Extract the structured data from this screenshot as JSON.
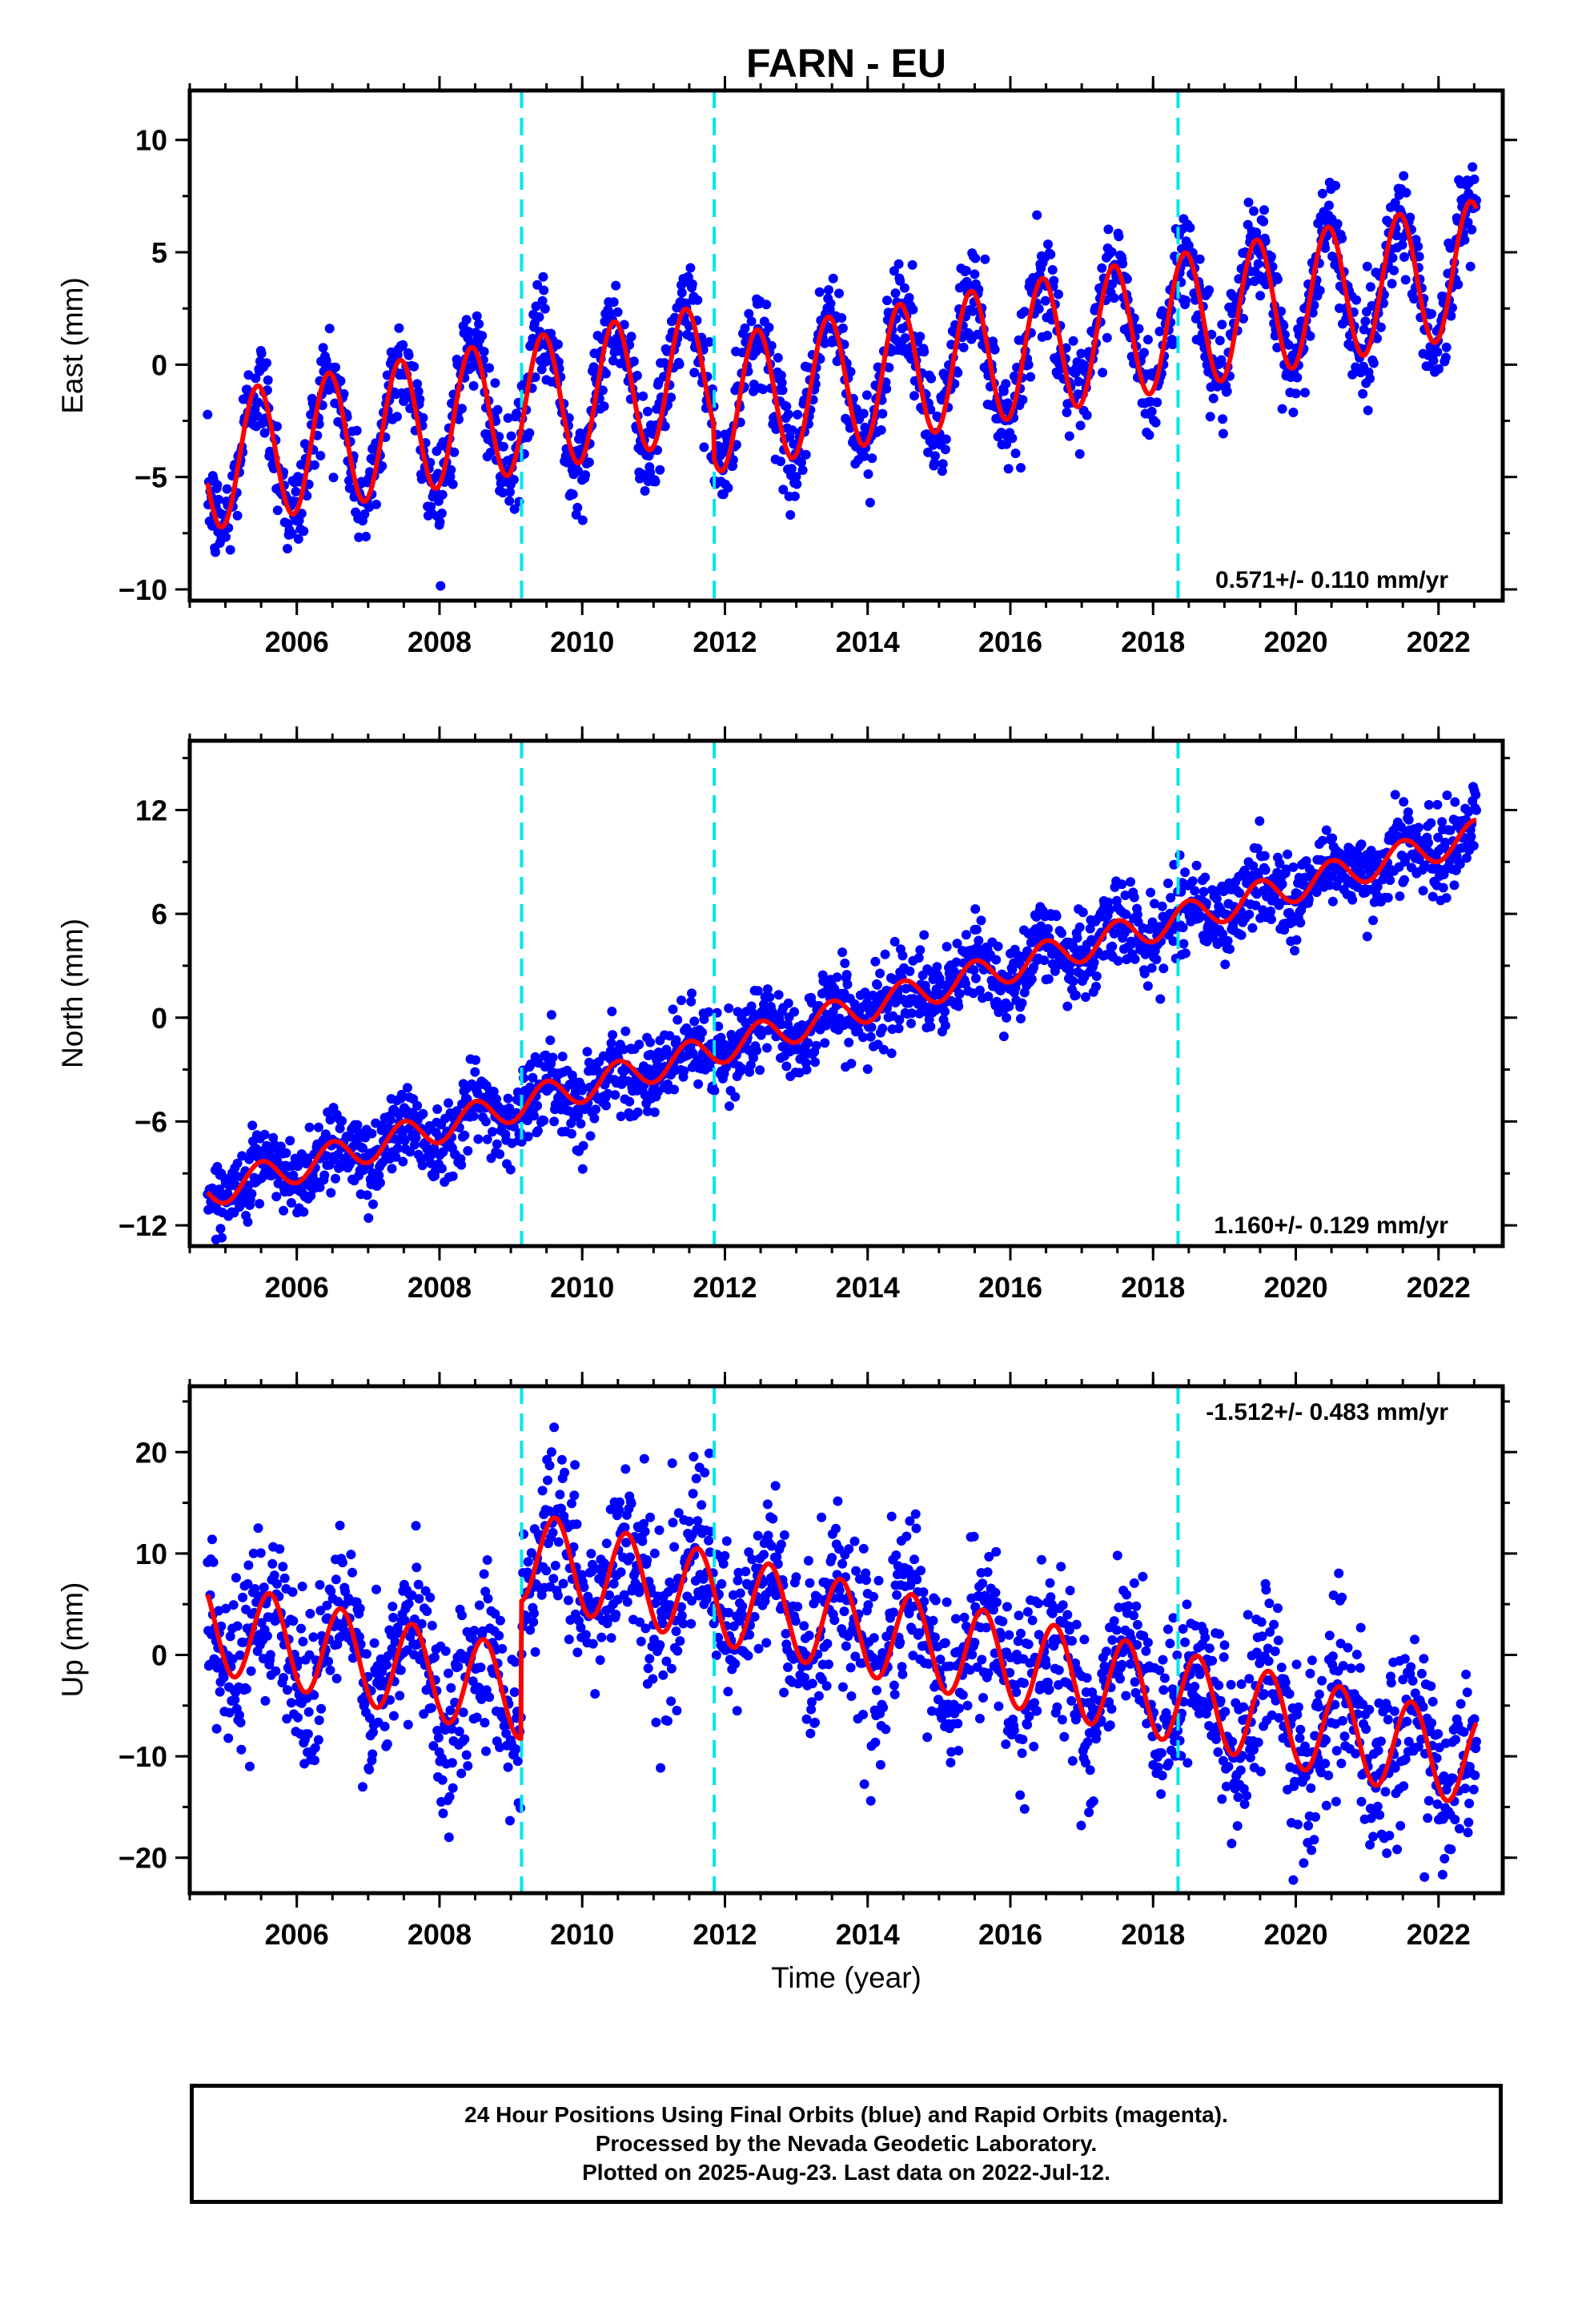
{
  "title": "FARN - EU",
  "xlabel": "Time (year)",
  "footer": {
    "line1": "24 Hour Positions Using Final Orbits (blue) and Rapid Orbits (magenta).",
    "line2": "Processed by the Nevada Geodetic Laboratory.",
    "line3": "Plotted on 2025-Aug-23. Last data on 2022-Jul-12."
  },
  "colors": {
    "observations": "#0000ff",
    "model": "#ff0000",
    "equipment_change": "#00e5ee",
    "frame": "#000000"
  },
  "chart_data": [
    {
      "type": "scatter",
      "component": "east",
      "ylabel": "East (mm)",
      "xlim": [
        2004.5,
        2022.9
      ],
      "ylim": [
        -10.5,
        12.2
      ],
      "xticks": [
        2006,
        2008,
        2010,
        2012,
        2014,
        2016,
        2018,
        2020,
        2022
      ],
      "yticks": [
        -10,
        -5,
        0,
        5,
        10
      ],
      "rate_text": "0.571+/- 0.110 mm/yr",
      "rate_position": "bottom-right",
      "data_span": [
        2004.75,
        2022.53
      ],
      "equipment_changes": [
        2009.15,
        2011.85,
        2018.35
      ],
      "model": {
        "offset_at_2005": -4.2,
        "trend_mm_per_yr": 0.571,
        "annual_amplitude": 3.0,
        "annual_peak": 0.45,
        "steps": [
          [
            2009.15,
            0.0
          ],
          [
            2011.85,
            -1.5
          ],
          [
            2018.35,
            0.0
          ]
        ]
      },
      "series": [
        {
          "name": "24 Hour Positions",
          "style": "dots",
          "scatter_std": 1.1,
          "points_per_year": 110
        },
        {
          "name": "Model",
          "style": "line"
        }
      ]
    },
    {
      "type": "scatter",
      "component": "north",
      "ylabel": "North (mm)",
      "xlim": [
        2004.5,
        2022.9
      ],
      "ylim": [
        -13.2,
        16.0
      ],
      "xticks": [
        2006,
        2008,
        2010,
        2012,
        2014,
        2016,
        2018,
        2020,
        2022
      ],
      "yticks": [
        -12,
        -6,
        0,
        6,
        12
      ],
      "rate_text": "1.160+/- 0.129 mm/yr",
      "rate_position": "bottom-right",
      "data_span": [
        2004.75,
        2022.53
      ],
      "equipment_changes": [
        2009.15,
        2011.85,
        2018.35
      ],
      "model": {
        "offset_at_2005": -9.8,
        "trend_mm_per_yr": 1.16,
        "annual_amplitude": 0.9,
        "annual_peak": 0.5,
        "steps": [
          [
            2009.15,
            0.0
          ],
          [
            2011.85,
            0.0
          ],
          [
            2018.35,
            0.0
          ]
        ]
      },
      "series": [
        {
          "name": "24 Hour Positions",
          "style": "dots",
          "scatter_std": 1.2,
          "points_per_year": 110
        },
        {
          "name": "Model",
          "style": "line"
        }
      ]
    },
    {
      "type": "scatter",
      "component": "up",
      "ylabel": "Up (mm)",
      "xlim": [
        2004.5,
        2022.9
      ],
      "ylim": [
        -23.5,
        26.5
      ],
      "xticks": [
        2006,
        2008,
        2010,
        2012,
        2014,
        2016,
        2018,
        2020,
        2022
      ],
      "yticks": [
        -20,
        -10,
        0,
        10,
        20
      ],
      "rate_text": "-1.512+/- 0.483 mm/yr",
      "rate_position": "top-right",
      "data_span": [
        2004.75,
        2022.53
      ],
      "equipment_changes": [
        2009.15,
        2011.85,
        2018.35
      ],
      "model": {
        "offset_at_2005": 2.5,
        "trend_mm_per_yr": -1.512,
        "annual_amplitude": 4.5,
        "annual_peak": 0.62,
        "steps": [
          [
            2009.15,
            13.5
          ],
          [
            2011.85,
            0.0
          ],
          [
            2018.35,
            0.0
          ]
        ]
      },
      "series": [
        {
          "name": "24 Hour Positions",
          "style": "dots",
          "scatter_std": 4.2,
          "points_per_year": 110
        },
        {
          "name": "Model",
          "style": "line"
        }
      ]
    }
  ]
}
